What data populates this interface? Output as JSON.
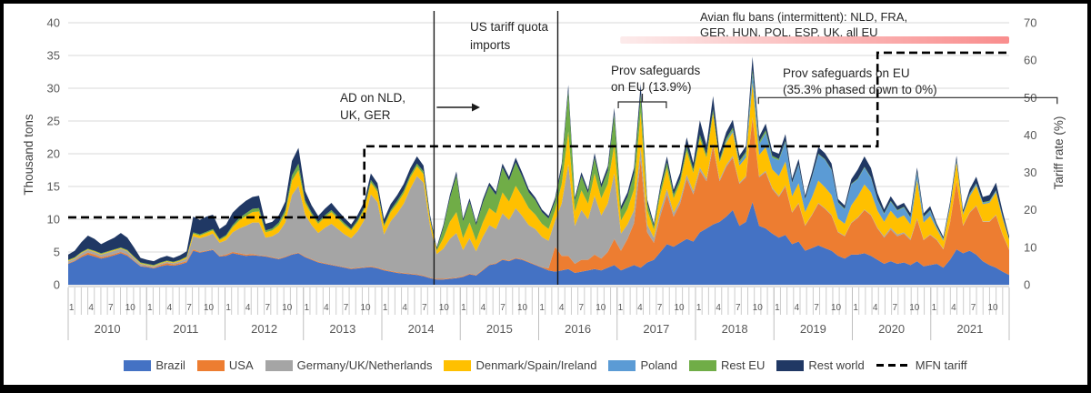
{
  "chart_data": {
    "type": "area",
    "stacked": true,
    "x_axis": {
      "years": [
        "2010",
        "2011",
        "2012",
        "2013",
        "2014",
        "2015",
        "2016",
        "2017",
        "2018",
        "2019",
        "2020",
        "2021"
      ],
      "month_tick_labels": [
        "1",
        "4",
        "7",
        "10"
      ],
      "months_per_year": 12
    },
    "y_left": {
      "label": "Thousand tons",
      "min": 0,
      "max": 40,
      "step": 5
    },
    "y_right": {
      "label": "Tariff rate (%)",
      "min": 0,
      "max": 70,
      "step": 10
    },
    "grid": "horizontal",
    "legend_position": "bottom",
    "series": [
      {
        "name": "Brazil",
        "color": "#4472C4",
        "values": [
          3.2,
          3.6,
          4.2,
          4.6,
          4.3,
          4.0,
          4.2,
          4.5,
          4.8,
          4.4,
          3.6,
          2.8,
          2.7,
          2.5,
          2.8,
          3.0,
          2.9,
          3.1,
          3.4,
          5.2,
          4.9,
          5.1,
          5.3,
          4.3,
          4.4,
          4.8,
          4.6,
          4.4,
          4.5,
          4.4,
          4.3,
          4.1,
          3.9,
          4.2,
          4.6,
          4.8,
          4.2,
          3.8,
          3.4,
          3.2,
          3.0,
          2.8,
          2.6,
          2.4,
          2.5,
          2.6,
          2.7,
          2.5,
          2.2,
          2.0,
          1.8,
          1.7,
          1.6,
          1.5,
          1.3,
          1.0,
          0.8,
          0.8,
          0.9,
          1.0,
          1.2,
          1.6,
          1.4,
          2.2,
          3.0,
          3.2,
          3.8,
          3.6,
          4.0,
          3.8,
          3.4,
          3.0,
          2.6,
          2.2,
          2.0,
          2.2,
          2.4,
          1.8,
          2.0,
          2.2,
          2.4,
          2.2,
          2.6,
          3.0,
          2.2,
          2.6,
          3.0,
          2.6,
          3.4,
          3.8,
          5.0,
          6.2,
          5.8,
          6.4,
          7.0,
          6.6,
          8.0,
          8.6,
          9.2,
          9.6,
          10.4,
          11.4,
          9.0,
          9.6,
          12.6,
          9.0,
          8.6,
          7.8,
          7.2,
          7.6,
          6.2,
          6.6,
          5.2,
          5.6,
          6.0,
          5.6,
          5.2,
          4.4,
          4.0,
          4.6,
          4.6,
          4.8,
          4.4,
          3.8,
          3.2,
          3.6,
          3.2,
          3.4,
          3.0,
          3.6,
          2.8,
          3.0,
          3.2,
          2.6,
          3.8,
          5.4,
          4.8,
          5.2,
          4.6,
          3.6,
          3.0,
          2.6,
          2.0,
          1.5
        ]
      },
      {
        "name": "USA",
        "color": "#ED7D31",
        "values": [
          0.1,
          0.1,
          0.2,
          0.3,
          0.3,
          0.2,
          0.2,
          0.2,
          0.2,
          0.2,
          0.1,
          0.1,
          0.1,
          0.1,
          0.2,
          0.3,
          0.2,
          0.2,
          0.2,
          0.2,
          0.1,
          0.1,
          0.1,
          0.1,
          0.2,
          0.2,
          0.2,
          0.2,
          0.2,
          0.1,
          0.1,
          0.1,
          0.1,
          0.1,
          0.1,
          0.1,
          0.1,
          0.1,
          0.1,
          0.1,
          0.1,
          0.1,
          0.1,
          0.1,
          0.1,
          0.1,
          0.1,
          0.1,
          0.1,
          0.1,
          0.1,
          0.1,
          0.1,
          0.1,
          0.1,
          0.1,
          0.1,
          0.1,
          0.1,
          0.1,
          0.1,
          0.1,
          0.1,
          0.1,
          0.1,
          0.1,
          0.1,
          0.1,
          0.1,
          0.1,
          0.1,
          0.1,
          0.1,
          0.3,
          3.8,
          2.2,
          2.0,
          1.4,
          1.8,
          1.6,
          2.2,
          1.8,
          2.4,
          4.0,
          3.0,
          4.4,
          6.4,
          16.5,
          4.6,
          2.6,
          5.6,
          7.6,
          4.6,
          6.0,
          9.2,
          7.2,
          9.4,
          7.2,
          12.0,
          6.2,
          7.6,
          8.0,
          6.4,
          6.8,
          12.8,
          7.4,
          8.6,
          6.8,
          6.2,
          7.4,
          4.8,
          5.8,
          3.8,
          5.0,
          6.4,
          6.0,
          5.4,
          3.6,
          3.4,
          4.8,
          5.6,
          6.6,
          6.2,
          4.8,
          4.0,
          4.8,
          4.2,
          4.4,
          3.8,
          6.4,
          4.0,
          4.6,
          3.6,
          2.8,
          5.6,
          10.4,
          4.2,
          5.8,
          7.4,
          6.0,
          6.6,
          8.0,
          5.6,
          3.8
        ]
      },
      {
        "name": "Germany/UK/Netherlands",
        "color": "#A5A5A5",
        "values": [
          0.3,
          0.3,
          0.4,
          0.4,
          0.4,
          0.4,
          0.5,
          0.5,
          0.5,
          0.5,
          0.4,
          0.3,
          0.2,
          0.2,
          0.2,
          0.2,
          0.2,
          0.3,
          0.4,
          2.0,
          2.1,
          2.2,
          2.4,
          2.0,
          2.2,
          3.0,
          3.8,
          4.4,
          4.8,
          5.0,
          2.8,
          3.2,
          4.0,
          5.2,
          9.0,
          10.2,
          6.4,
          5.2,
          4.4,
          5.4,
          6.2,
          5.6,
          5.0,
          4.6,
          5.6,
          7.2,
          11.0,
          10.0,
          5.4,
          7.6,
          9.0,
          10.6,
          13.0,
          15.0,
          14.2,
          7.8,
          3.8,
          4.6,
          6.0,
          6.8,
          4.0,
          5.4,
          3.6,
          5.0,
          6.0,
          5.2,
          7.0,
          6.2,
          7.6,
          6.6,
          5.6,
          5.4,
          4.6,
          4.2,
          4.0,
          8.0,
          14.0,
          5.8,
          7.6,
          6.2,
          9.0,
          6.6,
          7.4,
          10.0,
          2.6,
          2.2,
          2.0,
          1.8,
          1.2,
          0.8,
          0.8,
          0.8,
          0.6,
          0.6,
          0.6,
          0.5,
          0.5,
          0.4,
          0.4,
          0.3,
          0.3,
          0.3,
          0.2,
          0.2,
          0.2,
          0.2,
          0.2,
          0.2,
          0.2,
          0.2,
          0.1,
          0.1,
          0.1,
          0.1,
          0.1,
          0.1,
          0.1,
          0.1,
          0.1,
          0.1,
          0.1,
          0.1,
          0.1,
          0.1,
          0.2,
          0.3,
          0.3,
          0.2,
          0.2,
          0.2,
          0.1,
          0.1,
          0.1,
          0.1,
          0.1,
          0.1,
          0.1,
          0.1,
          0.1,
          0.1,
          0.1,
          0.1,
          0.1,
          0.1
        ]
      },
      {
        "name": "Denmark/Spain/Ireland",
        "color": "#FFC000",
        "values": [
          0.1,
          0.1,
          0.1,
          0.1,
          0.1,
          0.1,
          0.1,
          0.1,
          0.1,
          0.1,
          0.1,
          0.1,
          0.1,
          0.1,
          0.1,
          0.1,
          0.1,
          0.1,
          0.2,
          0.4,
          0.4,
          0.5,
          0.5,
          0.4,
          0.6,
          0.8,
          1.2,
          1.5,
          1.6,
          1.7,
          0.8,
          0.9,
          1.1,
          1.4,
          2.2,
          2.4,
          1.8,
          1.6,
          1.4,
          1.6,
          1.8,
          1.6,
          1.4,
          1.2,
          1.4,
          1.6,
          1.8,
          1.6,
          1.2,
          1.4,
          1.5,
          1.6,
          1.7,
          1.5,
          1.3,
          0.9,
          0.5,
          1.6,
          2.6,
          3.2,
          1.8,
          2.4,
          1.6,
          2.2,
          2.6,
          2.4,
          3.2,
          2.8,
          3.4,
          3.0,
          2.6,
          2.2,
          2.0,
          1.8,
          1.6,
          3.0,
          5.0,
          2.2,
          3.0,
          2.4,
          3.4,
          2.6,
          3.0,
          4.4,
          2.0,
          2.4,
          3.2,
          5.4,
          2.2,
          1.2,
          2.4,
          3.2,
          2.2,
          2.6,
          3.6,
          2.8,
          4.4,
          3.2,
          4.6,
          2.6,
          3.4,
          3.6,
          2.6,
          2.8,
          5.2,
          3.2,
          3.6,
          2.8,
          3.0,
          3.6,
          2.4,
          3.0,
          2.0,
          2.6,
          3.4,
          3.2,
          3.0,
          2.0,
          1.8,
          2.6,
          3.2,
          3.8,
          3.4,
          2.6,
          2.2,
          2.6,
          2.4,
          2.6,
          2.2,
          5.8,
          2.6,
          2.8,
          1.6,
          1.2,
          2.2,
          2.8,
          1.6,
          2.4,
          3.0,
          2.6,
          2.8,
          3.4,
          2.4,
          1.4
        ]
      },
      {
        "name": "Poland",
        "color": "#5B9BD5",
        "values": [
          0,
          0,
          0,
          0,
          0,
          0,
          0,
          0,
          0,
          0,
          0,
          0,
          0,
          0,
          0,
          0,
          0,
          0,
          0,
          0,
          0,
          0,
          0,
          0,
          0,
          0,
          0,
          0,
          0,
          0,
          0,
          0,
          0,
          0,
          0,
          0,
          0,
          0,
          0,
          0,
          0,
          0,
          0,
          0,
          0,
          0,
          0,
          0,
          0,
          0,
          0,
          0,
          0,
          0,
          0,
          0,
          0,
          0,
          0,
          0,
          0,
          0,
          0,
          0,
          0,
          0,
          0,
          0,
          0,
          0,
          0,
          0,
          0,
          0,
          0,
          0,
          0,
          0,
          0,
          0,
          0,
          0,
          0,
          0,
          0,
          0,
          0,
          0,
          0,
          0,
          0,
          0,
          0,
          0,
          0,
          0,
          0,
          0,
          0,
          0,
          0.2,
          0.3,
          0.4,
          0.6,
          1.4,
          1.6,
          2.2,
          1.8,
          2.4,
          3.0,
          2.0,
          2.8,
          1.9,
          3.0,
          4.0,
          4.2,
          3.8,
          2.4,
          2.2,
          3.2,
          2.6,
          2.6,
          2.2,
          1.6,
          1.2,
          1.4,
          1.2,
          1.2,
          1.0,
          1.0,
          0.8,
          0.8,
          0.3,
          0.2,
          0.3,
          0.3,
          0.2,
          0.3,
          0.3,
          0.2,
          0.2,
          0.2,
          0.2,
          0.1
        ]
      },
      {
        "name": "Rest EU",
        "color": "#70AD47",
        "values": [
          0.1,
          0.1,
          0.1,
          0.1,
          0.1,
          0.1,
          0.1,
          0.1,
          0.1,
          0.1,
          0.1,
          0.1,
          0.1,
          0.1,
          0.1,
          0.1,
          0.1,
          0.1,
          0.1,
          0.2,
          0.2,
          0.2,
          0.2,
          0.2,
          0.2,
          0.3,
          0.4,
          0.4,
          0.5,
          0.5,
          0.3,
          0.3,
          0.4,
          0.5,
          0.8,
          1.0,
          0.4,
          0.3,
          0.3,
          0.3,
          0.3,
          0.3,
          0.3,
          0.2,
          0.3,
          0.3,
          0.4,
          0.4,
          0.3,
          0.3,
          0.4,
          0.4,
          0.4,
          0.4,
          0.4,
          0.3,
          0.2,
          1.6,
          3.6,
          5.6,
          2.6,
          3.2,
          2.4,
          3.0,
          3.4,
          2.8,
          3.8,
          3.2,
          3.6,
          3.0,
          2.4,
          2.2,
          1.8,
          1.6,
          1.4,
          2.4,
          6.2,
          1.6,
          2.2,
          1.6,
          2.4,
          1.6,
          2.0,
          4.6,
          1.6,
          1.8,
          2.4,
          2.8,
          1.0,
          0.5,
          0.8,
          0.9,
          0.6,
          0.6,
          0.7,
          0.5,
          0.6,
          0.5,
          0.6,
          0.4,
          0.4,
          0.4,
          0.3,
          0.3,
          0.6,
          0.4,
          0.4,
          0.3,
          0.2,
          0.2,
          0.1,
          0.1,
          0.1,
          0.1,
          0.1,
          0.1,
          0.1,
          0.1,
          0.1,
          0.1,
          0.1,
          0.1,
          0.1,
          0.1,
          0.1,
          0.1,
          0.1,
          0.1,
          0.1,
          0.2,
          0.1,
          0.1,
          0.1,
          0.1,
          0.1,
          0.1,
          0.1,
          0.1,
          0.1,
          0.1,
          0.1,
          0.1,
          0.1,
          0.1
        ]
      },
      {
        "name": "Rest world",
        "color": "#203864",
        "values": [
          0.8,
          1.0,
          1.5,
          2.0,
          1.8,
          1.4,
          1.6,
          1.8,
          2.2,
          1.9,
          1.4,
          0.7,
          0.6,
          0.6,
          0.7,
          0.7,
          0.6,
          0.7,
          0.8,
          2.4,
          2.2,
          2.3,
          2.2,
          1.5,
          1.6,
          1.9,
          1.8,
          1.9,
          1.8,
          1.9,
          1.0,
          1.0,
          1.1,
          1.3,
          2.2,
          2.4,
          1.4,
          1.1,
          0.9,
          1.0,
          1.1,
          0.9,
          0.8,
          0.7,
          0.8,
          0.9,
          1.0,
          0.9,
          0.8,
          0.9,
          0.9,
          1.0,
          1.0,
          1.1,
          0.9,
          0.5,
          0.3,
          0.4,
          0.5,
          0.6,
          0.4,
          0.5,
          0.4,
          0.5,
          0.5,
          0.5,
          0.6,
          0.6,
          0.7,
          0.6,
          0.5,
          0.4,
          0.4,
          0.4,
          0.5,
          0.7,
          0.9,
          0.5,
          0.6,
          0.5,
          0.7,
          0.6,
          0.7,
          1.0,
          0.6,
          0.7,
          0.9,
          1.6,
          0.6,
          0.4,
          0.6,
          0.9,
          0.7,
          0.9,
          1.4,
          1.0,
          2.2,
          1.4,
          2.0,
          1.0,
          1.0,
          1.2,
          0.8,
          0.9,
          2.0,
          0.8,
          1.0,
          0.7,
          0.8,
          1.0,
          0.6,
          0.8,
          0.5,
          0.7,
          1.0,
          0.9,
          0.9,
          0.5,
          0.5,
          0.7,
          1.4,
          1.6,
          1.4,
          1.0,
          0.6,
          0.7,
          0.6,
          0.6,
          0.6,
          0.7,
          0.5,
          0.6,
          0.4,
          0.3,
          0.5,
          0.6,
          0.4,
          0.7,
          1.0,
          0.8,
          0.9,
          1.2,
          0.8,
          0.4
        ]
      }
    ],
    "mfn_tariff": {
      "name": "MFN tariff",
      "color": "#000000",
      "style": "dashed",
      "axis": "right",
      "segments": [
        {
          "from_month_index": 0,
          "to_month_index": 45,
          "rate_percent": 18
        },
        {
          "from_month_index": 45,
          "to_month_index": 123,
          "rate_percent": 37
        },
        {
          "from_month_index": 123,
          "to_month_index": 143,
          "rate_percent": 62
        }
      ]
    },
    "annotations": {
      "vlines": [
        {
          "month_index": 55.6
        },
        {
          "month_index": 74.4
        }
      ],
      "ad_label": {
        "lines": [
          "AD on NLD,",
          "UK, GER"
        ]
      },
      "us_quota_label": {
        "lines": [
          "US tariff quota",
          "imports"
        ]
      },
      "safeguard_139": {
        "lines": [
          "Prov safeguards",
          "on EU (13.9%)"
        ],
        "bracket_from_month": 83.6,
        "bracket_to_month": 90.9
      },
      "safeguard_353": {
        "lines": [
          "Prov safeguards on EU",
          "(35.3% phased down to 0%)"
        ],
        "bracket_rate_percent": 50,
        "bracket_from_month": 104.9,
        "bracket_to_month": 150.3
      },
      "avian_flu": {
        "lines": [
          "Avian flu bans (intermittent): NLD, FRA,",
          "GER, HUN, POL, ESP, UK, all EU"
        ],
        "bar_from_month": 83.9,
        "bar_to_month": 143,
        "bar_color_start": "#fcebeb",
        "bar_color_end": "#f98d8d"
      }
    },
    "colors": {
      "gridline": "#d9d9d9",
      "tick_text": "#595959",
      "annotation_text": "#262626",
      "axis_line": "#bfbfbf"
    }
  },
  "legend": {
    "items": [
      {
        "label": "Brazil",
        "color": "#4472C4",
        "type": "area"
      },
      {
        "label": "USA",
        "color": "#ED7D31",
        "type": "area"
      },
      {
        "label": "Germany/UK/Netherlands",
        "color": "#A5A5A5",
        "type": "area"
      },
      {
        "label": "Denmark/Spain/Ireland",
        "color": "#FFC000",
        "type": "area"
      },
      {
        "label": "Poland",
        "color": "#5B9BD5",
        "type": "area"
      },
      {
        "label": "Rest EU",
        "color": "#70AD47",
        "type": "area"
      },
      {
        "label": "Rest world",
        "color": "#203864",
        "type": "area"
      },
      {
        "label": "MFN tariff",
        "color": "#000000",
        "type": "dashed-line"
      }
    ]
  }
}
